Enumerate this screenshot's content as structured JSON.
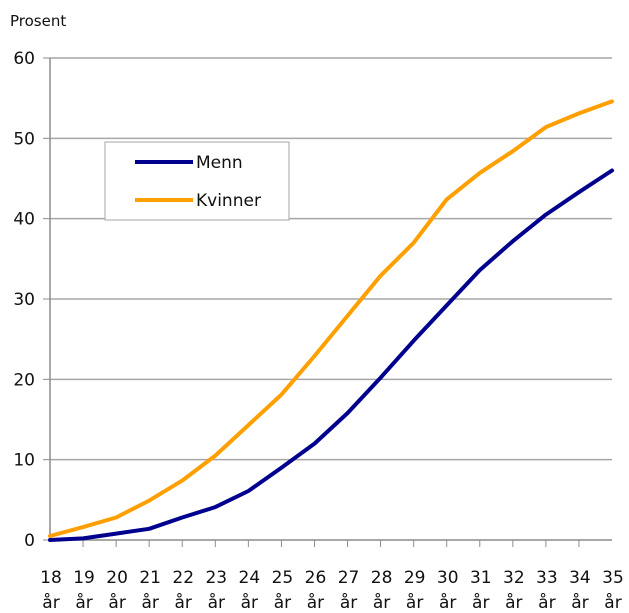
{
  "chart_data": {
    "type": "line",
    "ylabel": "Prosent",
    "xlabel": "",
    "ylim": [
      0,
      60
    ],
    "yticks": [
      "0",
      "10",
      "20",
      "30",
      "40",
      "50",
      "60"
    ],
    "x": [
      "18",
      "19",
      "20",
      "21",
      "22",
      "23",
      "24",
      "25",
      "26",
      "27",
      "28",
      "29",
      "30",
      "31",
      "32",
      "33",
      "34",
      "35"
    ],
    "x_unit": "år",
    "grid": "horizontal",
    "legend_position": "upper-left",
    "series": [
      {
        "name": "Menn",
        "color": "#00008f",
        "values": [
          0.0,
          0.2,
          0.8,
          1.4,
          2.8,
          4.1,
          6.1,
          9.0,
          12.0,
          15.8,
          20.2,
          24.8,
          29.2,
          33.6,
          37.2,
          40.5,
          43.3,
          46.0
        ]
      },
      {
        "name": "Kvinner",
        "color": "#ff9f00",
        "values": [
          0.5,
          1.6,
          2.8,
          4.9,
          7.4,
          10.5,
          14.3,
          18.1,
          22.9,
          27.9,
          32.9,
          37.0,
          42.4,
          45.7,
          48.4,
          51.4,
          53.1,
          54.6
        ]
      }
    ]
  }
}
